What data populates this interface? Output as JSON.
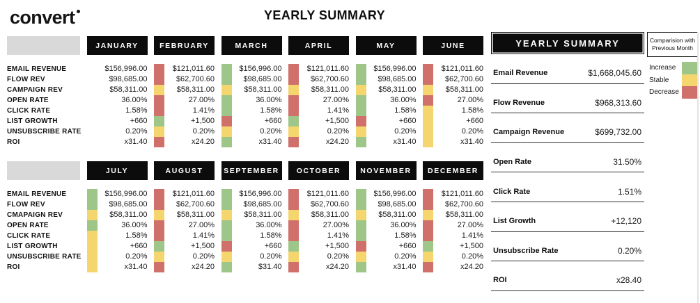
{
  "logo": {
    "text": "convert"
  },
  "page_title": "YEARLY SUMMARY",
  "colors": {
    "increase": "#9dc688",
    "stable": "#f5d66e",
    "decrease": "#d0706a"
  },
  "tables": [
    {
      "row_labels": [
        "EMAIL REVENUE",
        "FLOW REV",
        "CAMPAIGN REV",
        "OPEN RATE",
        "CLICK RATE",
        "LIST GROWTH",
        "UNSUBSCRIBE RATE",
        "ROI"
      ],
      "months": [
        {
          "name": "JANUARY",
          "values": [
            "$156,996.00",
            "$98,685.00",
            "$58,311.00",
            "36.00%",
            "1.58%",
            "+660",
            "0.20%",
            "x31.40"
          ],
          "comparison": [
            null,
            null,
            null,
            null,
            null,
            null,
            null,
            null
          ]
        },
        {
          "name": "FEBRUARY",
          "values": [
            "$121,011.60",
            "$62,700.60",
            "$58,311.00",
            "27.00%",
            "1.41%",
            "+1,500",
            "0.20%",
            "x24.20"
          ],
          "comparison": [
            "decrease",
            "decrease",
            "stable",
            "decrease",
            "decrease",
            "increase",
            "stable",
            "decrease"
          ]
        },
        {
          "name": "MARCH",
          "values": [
            "$156,996.00",
            "$98,685.00",
            "$58,311.00",
            "36.00%",
            "1.58%",
            "+660",
            "0.20%",
            "x31.40"
          ],
          "comparison": [
            "increase",
            "increase",
            "stable",
            "increase",
            "increase",
            "decrease",
            "stable",
            "increase"
          ]
        },
        {
          "name": "APRIL",
          "values": [
            "$121,011.60",
            "$62,700.60",
            "$58,311.00",
            "27.00%",
            "1.41%",
            "+1,500",
            "0.20%",
            "x24.20"
          ],
          "comparison": [
            "decrease",
            "decrease",
            "stable",
            "decrease",
            "decrease",
            "increase",
            "stable",
            "decrease"
          ]
        },
        {
          "name": "MAY",
          "values": [
            "$156,996.00",
            "$98,685.00",
            "$58,311.00",
            "36.00%",
            "1.58%",
            "+660",
            "0.20%",
            "x31.40"
          ],
          "comparison": [
            "increase",
            "increase",
            "stable",
            "increase",
            "increase",
            "decrease",
            "stable",
            "increase"
          ]
        },
        {
          "name": "JUNE",
          "values": [
            "$121,011.60",
            "$62,700.60",
            "$58,311.00",
            "27.00%",
            "1.58%",
            "+660",
            "0.20%",
            "x31.40"
          ],
          "comparison": [
            "decrease",
            "decrease",
            "stable",
            "decrease",
            "stable",
            "stable",
            "stable",
            "stable"
          ]
        }
      ]
    },
    {
      "row_labels": [
        "EMAIL REVENUE",
        "FLOW REV",
        "CMAPAIGN REV",
        "OPEN RATE",
        "CLICK RATE",
        "LIST GROWTH",
        "UNSUBSCRIBE RATE",
        "ROI"
      ],
      "months": [
        {
          "name": "JULY",
          "values": [
            "$156,996.00",
            "$98,685.00",
            "$58,311.00",
            "36.00%",
            "1.58%",
            "+660",
            "0.20%",
            "x31.40"
          ],
          "comparison": [
            "increase",
            "increase",
            "stable",
            "increase",
            "stable",
            "stable",
            "stable",
            "stable"
          ]
        },
        {
          "name": "AUGUST",
          "values": [
            "$121,011.60",
            "$62,700.60",
            "$58,311.00",
            "27.00%",
            "1.41%",
            "+1,500",
            "0.20%",
            "x24.20"
          ],
          "comparison": [
            "decrease",
            "decrease",
            "stable",
            "decrease",
            "decrease",
            "increase",
            "stable",
            "decrease"
          ]
        },
        {
          "name": "SEPTEMBER",
          "values": [
            "$156,996.00",
            "$98,685.00",
            "$58,311.00",
            "36.00%",
            "1.58%",
            "+660",
            "0.20%",
            "$31.40"
          ],
          "comparison": [
            "increase",
            "increase",
            "stable",
            "increase",
            "increase",
            "decrease",
            "stable",
            "increase"
          ]
        },
        {
          "name": "OCTOBER",
          "values": [
            "$121,011.60",
            "$62,700.60",
            "$58,311.00",
            "27.00%",
            "1.41%",
            "+1,500",
            "0.20%",
            "x24.20"
          ],
          "comparison": [
            "decrease",
            "decrease",
            "stable",
            "decrease",
            "decrease",
            "increase",
            "stable",
            "decrease"
          ]
        },
        {
          "name": "NOVEMBER",
          "values": [
            "$156,996.00",
            "$98,685.00",
            "$58,311.00",
            "36.00%",
            "1.58%",
            "+660",
            "0.20%",
            "x31.40"
          ],
          "comparison": [
            "increase",
            "increase",
            "stable",
            "increase",
            "increase",
            "decrease",
            "stable",
            "increase"
          ]
        },
        {
          "name": "DECEMBER",
          "values": [
            "$121,011.60",
            "$62,700.60",
            "$58,311.00",
            "27.00%",
            "1.41%",
            "+1,500",
            "0.20%",
            "x24.20"
          ],
          "comparison": [
            "decrease",
            "decrease",
            "stable",
            "decrease",
            "decrease",
            "increase",
            "stable",
            "decrease"
          ]
        }
      ]
    }
  ],
  "summary_panel": {
    "title": "YEARLY SUMMARY",
    "rows": [
      {
        "label": "Email Revenue",
        "value": "$1,668,045.60"
      },
      {
        "label": "Flow Revenue",
        "value": "$968,313.60"
      },
      {
        "label": "Campaign Revenue",
        "value": "$699,732.00"
      },
      {
        "label": "Open Rate",
        "value": "31.50%"
      },
      {
        "label": "Click Rate",
        "value": "1.51%"
      },
      {
        "label": "List Growth",
        "value": "+12,120"
      },
      {
        "label": "Unsubscribe Rate",
        "value": "0.20%"
      },
      {
        "label": "ROI",
        "value": "x28.40"
      }
    ]
  },
  "legend": {
    "title": "Comparision with Previous Month",
    "items": [
      {
        "label": "Increase",
        "status": "increase"
      },
      {
        "label": "Stable",
        "status": "stable"
      },
      {
        "label": "Decrease",
        "status": "decrease"
      }
    ]
  }
}
